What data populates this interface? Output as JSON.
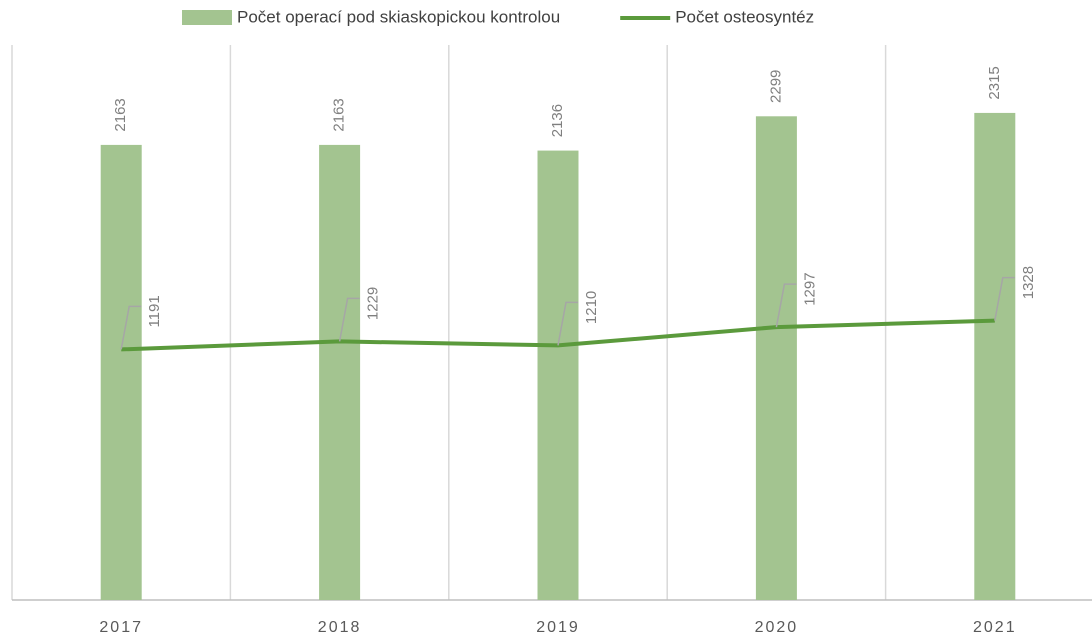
{
  "chart_data": {
    "type": "bar-line",
    "categories": [
      "2017",
      "2018",
      "2019",
      "2020",
      "2021"
    ],
    "series": [
      {
        "name": "Počet operací pod skiaskopickou kontrolou",
        "type": "bar",
        "color": "#a3c490",
        "values": [
          2163,
          2163,
          2136,
          2299,
          2315
        ]
      },
      {
        "name": "Počet osteosyntéz",
        "type": "line",
        "color": "#5b9a3c",
        "values": [
          1191,
          1229,
          1210,
          1297,
          1328
        ]
      }
    ],
    "ylim": [
      0,
      2500
    ],
    "legend": "top"
  }
}
